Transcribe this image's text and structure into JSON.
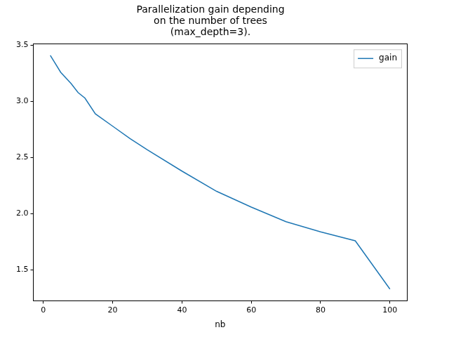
{
  "chart_data": {
    "type": "line",
    "title": "Parallelization gain depending\non the number of trees\n(max_depth=3).",
    "x_label": "nb",
    "x": [
      2,
      5,
      8,
      10,
      12,
      15,
      20,
      25,
      30,
      40,
      50,
      60,
      70,
      80,
      90,
      100
    ],
    "series": [
      {
        "name": "gain",
        "color": "#1f77b4",
        "values": [
          3.41,
          3.26,
          3.16,
          3.08,
          3.03,
          2.89,
          2.78,
          2.67,
          2.57,
          2.38,
          2.2,
          2.06,
          1.93,
          1.84,
          1.76,
          1.33
        ]
      }
    ],
    "xlim": [
      -2.9,
      104.9
    ],
    "xticks": [
      0,
      20,
      40,
      60,
      80,
      100
    ],
    "ylim": [
      1.226,
      3.514
    ],
    "yticks": [
      1.5,
      {
        "value": 2,
        "label": "2.0"
      },
      2.5,
      {
        "value": 3,
        "label": "3.0"
      },
      3.5
    ],
    "grid": false,
    "legend": "upper right"
  }
}
